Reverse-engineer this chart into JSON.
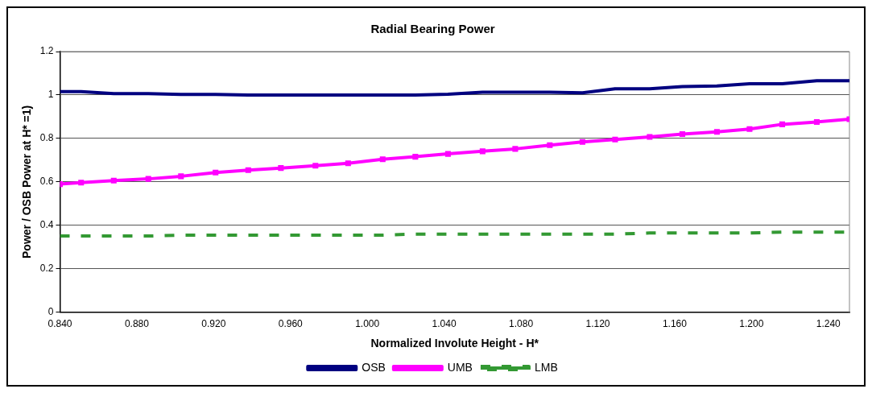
{
  "chart_data": {
    "type": "line",
    "title": "Radial Bearing Power",
    "xlabel": "Normalized Involute Height - H*",
    "ylabel": "Power / OSB Power at H* =1)",
    "x": [
      0.84,
      0.851,
      0.868,
      0.886,
      0.903,
      0.921,
      0.938,
      0.955,
      0.973,
      0.99,
      1.008,
      1.025,
      1.042,
      1.06,
      1.077,
      1.095,
      1.112,
      1.129,
      1.147,
      1.164,
      1.182,
      1.199,
      1.216,
      1.234,
      1.251
    ],
    "series": [
      {
        "name": "OSB",
        "color": "#000080",
        "marker": "none",
        "line_style": "solid",
        "values": [
          1.016,
          1.016,
          1.006,
          1.006,
          1.003,
          1.003,
          1.0,
          1.0,
          1.0,
          1.0,
          1.0,
          1.0,
          1.004,
          1.013,
          1.013,
          1.013,
          1.01,
          1.029,
          1.029,
          1.039,
          1.042,
          1.052,
          1.052,
          1.066,
          1.066
        ]
      },
      {
        "name": "UMB",
        "color": "#ff00ff",
        "marker": "square",
        "line_style": "solid",
        "values": [
          0.59,
          0.597,
          0.606,
          0.614,
          0.626,
          0.643,
          0.654,
          0.664,
          0.675,
          0.686,
          0.704,
          0.716,
          0.729,
          0.741,
          0.752,
          0.769,
          0.784,
          0.795,
          0.807,
          0.82,
          0.83,
          0.843,
          0.865,
          0.876,
          0.889
        ]
      },
      {
        "name": "LMB",
        "color": "#339933",
        "marker": "none",
        "line_style": "dashed",
        "values": [
          0.351,
          0.351,
          0.351,
          0.351,
          0.355,
          0.355,
          0.355,
          0.355,
          0.355,
          0.355,
          0.355,
          0.36,
          0.36,
          0.36,
          0.36,
          0.36,
          0.36,
          0.36,
          0.365,
          0.365,
          0.365,
          0.365,
          0.369,
          0.369,
          0.369
        ]
      }
    ],
    "xlim": [
      0.84,
      1.251
    ],
    "xticks": [
      {
        "value": 0.84,
        "label": "0.840"
      },
      {
        "value": 0.88,
        "label": "0.880"
      },
      {
        "value": 0.92,
        "label": "0.920"
      },
      {
        "value": 0.96,
        "label": "0.960"
      },
      {
        "value": 1.0,
        "label": "1.000"
      },
      {
        "value": 1.04,
        "label": "1.040"
      },
      {
        "value": 1.08,
        "label": "1.080"
      },
      {
        "value": 1.12,
        "label": "1.120"
      },
      {
        "value": 1.16,
        "label": "1.160"
      },
      {
        "value": 1.2,
        "label": "1.200"
      },
      {
        "value": 1.24,
        "label": "1.240"
      }
    ],
    "ylim": [
      0,
      1.2
    ],
    "yticks": [
      0,
      0.2,
      0.4,
      0.6,
      0.8,
      1,
      1.2
    ],
    "grid": "y",
    "legend": "bottom"
  }
}
